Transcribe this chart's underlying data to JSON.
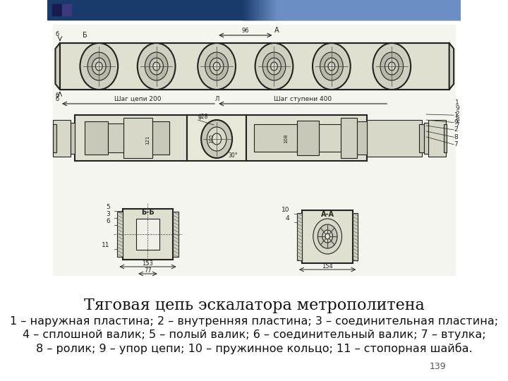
{
  "background_color": "#ffffff",
  "header_color_left": "#1a3a6b",
  "header_color_right": "#6b8fc4",
  "title": "Тяговая цепь эскалатора метрополитена",
  "title_fontsize": 16,
  "caption_line1": "1 – наружная пластина; 2 – внутренняя пластина; 3 – соединительная пластина;",
  "caption_line2": "4 – сплошной валик; 5 – полый валик; 6 – соединительный валик; 7 – втулка;",
  "caption_line3": "8 – ролик; 9 – упор цепи; 10 – пружинное кольцо; 11 – стопорная шайба.",
  "caption_fontsize": 11.5,
  "page_number": "139",
  "page_number_fontsize": 9,
  "figsize": [
    7.2,
    5.4
  ],
  "dpi": 100
}
